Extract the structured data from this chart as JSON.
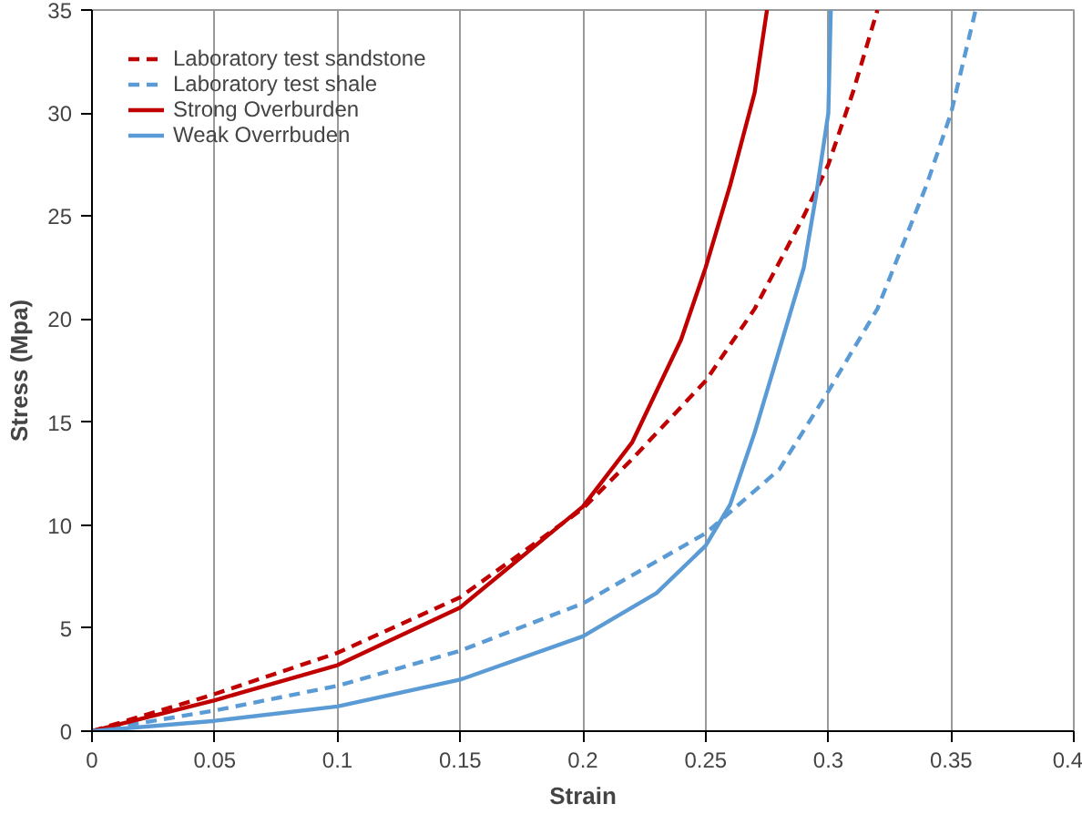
{
  "chart_data": {
    "type": "line",
    "xlabel": "Strain",
    "ylabel": "Stress (Mpa)",
    "xlim": [
      0,
      0.4
    ],
    "ylim": [
      0,
      35
    ],
    "xticks": [
      0,
      0.05,
      0.1,
      0.15,
      0.2,
      0.25,
      0.3,
      0.35,
      0.4
    ],
    "yticks": [
      0,
      5,
      10,
      15,
      20,
      25,
      30,
      35
    ],
    "grid": "x",
    "legend": "top left",
    "series": [
      {
        "name": "Laboratory test sandstone",
        "color": "#c00000",
        "line_style": "dashed",
        "x": [
          0,
          0.05,
          0.1,
          0.15,
          0.2,
          0.22,
          0.25,
          0.27,
          0.29,
          0.3,
          0.31,
          0.32
        ],
        "values": [
          0,
          1.8,
          3.8,
          6.5,
          10.8,
          13.2,
          17,
          20.5,
          25,
          27.5,
          31,
          35
        ]
      },
      {
        "name": "Laboratory test shale",
        "color": "#5b9bd5",
        "line_style": "dashed",
        "x": [
          0,
          0.05,
          0.1,
          0.15,
          0.2,
          0.25,
          0.28,
          0.3,
          0.32,
          0.33,
          0.34,
          0.35,
          0.36
        ],
        "values": [
          0,
          1,
          2.2,
          3.9,
          6.2,
          9.6,
          12.7,
          16.5,
          20.5,
          23.5,
          26.5,
          30,
          35
        ]
      },
      {
        "name": "Strong Overburden",
        "color": "#c00000",
        "line_style": "solid",
        "x": [
          0,
          0.05,
          0.1,
          0.15,
          0.2,
          0.22,
          0.24,
          0.25,
          0.26,
          0.27,
          0.275
        ],
        "values": [
          0,
          1.5,
          3.2,
          6,
          10.9,
          14,
          19,
          22.5,
          26.5,
          31,
          35
        ]
      },
      {
        "name": "Weak Overrbuden",
        "color": "#5b9bd5",
        "line_style": "solid",
        "x": [
          0,
          0.05,
          0.1,
          0.15,
          0.2,
          0.23,
          0.25,
          0.26,
          0.27,
          0.28,
          0.29,
          0.295,
          0.3,
          0.301
        ],
        "values": [
          0,
          0.5,
          1.2,
          2.5,
          4.6,
          6.7,
          9,
          11,
          14.5,
          18.5,
          22.5,
          26,
          30,
          35
        ]
      }
    ]
  }
}
